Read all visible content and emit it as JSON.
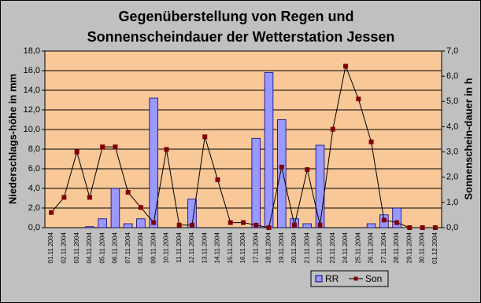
{
  "chart_data": {
    "type": "bar-line",
    "title": [
      "Gegenüberstellung von Regen und",
      "Sonnenscheindauer der Wetterstation Jessen"
    ],
    "y_label": "Niederschlags-höhe in mm",
    "y2_label": "Sonnenschein-dauer in h",
    "categories": [
      "01.11.2004",
      "02.11.2004",
      "03.11.2004",
      "04.11.2004",
      "05.11.2004",
      "06.11.2004",
      "07.11.2004",
      "08.11.2004",
      "09.11.2004",
      "10.11.2004",
      "11.11.2004",
      "12.11.2004",
      "13.11.2004",
      "14.11.2004",
      "15.11.2004",
      "16.11.2004",
      "17.11.2004",
      "18.11.2004",
      "19.11.2004",
      "20.11.2004",
      "21.11.2004",
      "22.11.2004",
      "23.11.2004",
      "24.11.2004",
      "25.11.2004",
      "26.11.2004",
      "27.11.2004",
      "28.11.2004",
      "29.11.2004",
      "30.11.2004",
      "01.12.2004"
    ],
    "series": [
      {
        "name": "RR",
        "type": "bar",
        "color": "#9999ff",
        "values": [
          0,
          0,
          0,
          0.1,
          0.9,
          4.0,
          0.4,
          0.9,
          13.2,
          0,
          0,
          2.9,
          0,
          0,
          0,
          0,
          9.1,
          15.8,
          11.0,
          0.9,
          0.4,
          8.4,
          0,
          0,
          0,
          0.4,
          1.3,
          2.0,
          0,
          0,
          0
        ]
      },
      {
        "name": "Son",
        "type": "line",
        "axis": "y2",
        "color": "#800000",
        "values": [
          0.6,
          1.2,
          3.0,
          1.2,
          3.2,
          3.2,
          1.4,
          0.8,
          0.2,
          3.1,
          0.1,
          0.1,
          3.6,
          1.9,
          0.2,
          0.2,
          0.1,
          0.0,
          2.4,
          0.1,
          2.3,
          0.1,
          3.9,
          6.4,
          5.1,
          3.4,
          0.3,
          0.2,
          0.0,
          0.0,
          0.0
        ]
      }
    ],
    "ylim": [
      0,
      18
    ],
    "yticks": [
      {
        "value": 0,
        "label": "0,0"
      },
      {
        "value": 2,
        "label": "2,0"
      },
      {
        "value": 4,
        "label": "4,0"
      },
      {
        "value": 6,
        "label": "6,0"
      },
      {
        "value": 8,
        "label": "8,0"
      },
      {
        "value": 10,
        "label": "10,0"
      },
      {
        "value": 12,
        "label": "12,0"
      },
      {
        "value": 14,
        "label": "14,0"
      },
      {
        "value": 16,
        "label": "16,0"
      },
      {
        "value": 18,
        "label": "18,0"
      }
    ],
    "y2lim": [
      0,
      7
    ],
    "y2ticks": [
      {
        "value": 0,
        "label": "0,0"
      },
      {
        "value": 1,
        "label": "1,0"
      },
      {
        "value": 2,
        "label": "2,0"
      },
      {
        "value": 3,
        "label": "3,0"
      },
      {
        "value": 4,
        "label": "4,0"
      },
      {
        "value": 5,
        "label": "5,0"
      },
      {
        "value": 6,
        "label": "6,0"
      },
      {
        "value": 7,
        "label": "7,0"
      }
    ],
    "grid": true,
    "legend": "bottom-right"
  }
}
